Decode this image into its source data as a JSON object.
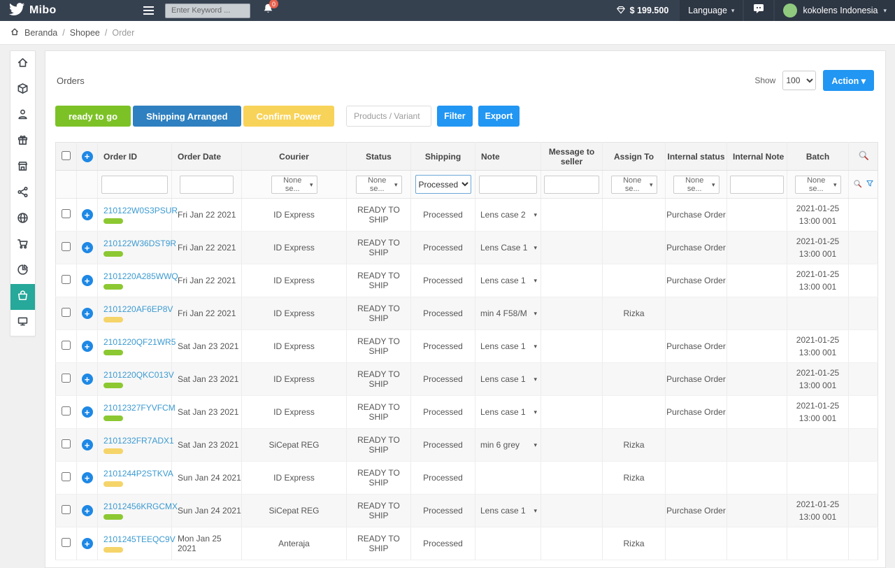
{
  "topbar": {
    "brand": "Mibo",
    "search_placeholder": "Enter Keyword ...",
    "notification_count": "0",
    "balance": "$ 199.500",
    "language_label": "Language",
    "user_name": "kokolens Indonesia"
  },
  "breadcrumb": {
    "home": "Beranda",
    "separator": "/",
    "section": "Shopee",
    "current": "Order"
  },
  "sidebar": {
    "items": [
      {
        "icon": "home-icon",
        "active": false
      },
      {
        "icon": "package-icon",
        "active": false
      },
      {
        "icon": "user-icon",
        "active": false
      },
      {
        "icon": "gift-icon",
        "active": false
      },
      {
        "icon": "store-icon",
        "active": false
      },
      {
        "icon": "share-icon",
        "active": false
      },
      {
        "icon": "globe-icon",
        "active": false
      },
      {
        "icon": "cart-icon",
        "active": false
      },
      {
        "icon": "pie-chart-icon",
        "active": false
      },
      {
        "icon": "basket-icon",
        "active": true
      },
      {
        "icon": "monitor-icon",
        "active": false
      }
    ]
  },
  "toolbar": {
    "title": "Orders",
    "show_label": "Show",
    "per_page": "100",
    "action_label": "Action ▾"
  },
  "actions": {
    "ready_to_go": "ready to go",
    "shipping_arranged": "Shipping Arranged",
    "confirm_power": "Confirm Power",
    "products_placeholder": "Products / Variant",
    "filter_label": "Filter",
    "export_label": "Export"
  },
  "table": {
    "columns": {
      "order_id": "Order ID",
      "order_date": "Order Date",
      "courier": "Courier",
      "status": "Status",
      "shipping": "Shipping",
      "note": "Note",
      "message": "Message to seller",
      "assign": "Assign To",
      "internal_status": "Internal status",
      "internal_note": "Internal Note",
      "batch": "Batch"
    },
    "filters": {
      "none_select": "None se...",
      "shipping_selected": "Processed"
    },
    "rows": [
      {
        "id": "210122W0S3PSUR",
        "badge": "green",
        "date": "Fri Jan 22 2021",
        "courier": "ID Express",
        "status": "READY TO SHIP",
        "shipping": "Processed",
        "note": "Lens case 2",
        "message": "",
        "assign": "",
        "internal_status": "Purchase Order",
        "internal_note": "",
        "batch": "2021-01-25 13:00 001"
      },
      {
        "id": "210122W36DST9R",
        "badge": "green",
        "date": "Fri Jan 22 2021",
        "courier": "ID Express",
        "status": "READY TO SHIP",
        "shipping": "Processed",
        "note": "Lens Case 1",
        "message": "",
        "assign": "",
        "internal_status": "Purchase Order",
        "internal_note": "",
        "batch": "2021-01-25 13:00 001"
      },
      {
        "id": "2101220A285WWQ",
        "badge": "green",
        "date": "Fri Jan 22 2021",
        "courier": "ID Express",
        "status": "READY TO SHIP",
        "shipping": "Processed",
        "note": "Lens case 1",
        "message": "",
        "assign": "",
        "internal_status": "Purchase Order",
        "internal_note": "",
        "batch": "2021-01-25 13:00 001"
      },
      {
        "id": "2101220AF6EP8V",
        "badge": "yellow",
        "date": "Fri Jan 22 2021",
        "courier": "ID Express",
        "status": "READY TO SHIP",
        "shipping": "Processed",
        "note": "min 4 F58/M",
        "message": "",
        "assign": "Rizka",
        "internal_status": "",
        "internal_note": "",
        "batch": ""
      },
      {
        "id": "2101220QF21WR5",
        "badge": "green",
        "date": "Sat Jan 23 2021",
        "courier": "ID Express",
        "status": "READY TO SHIP",
        "shipping": "Processed",
        "note": "Lens case 1",
        "message": "",
        "assign": "",
        "internal_status": "Purchase Order",
        "internal_note": "",
        "batch": "2021-01-25 13:00 001"
      },
      {
        "id": "2101220QKC013V",
        "badge": "green",
        "date": "Sat Jan 23 2021",
        "courier": "ID Express",
        "status": "READY TO SHIP",
        "shipping": "Processed",
        "note": "Lens case 1",
        "message": "",
        "assign": "",
        "internal_status": "Purchase Order",
        "internal_note": "",
        "batch": "2021-01-25 13:00 001"
      },
      {
        "id": "21012327FYVFCM",
        "badge": "green",
        "date": "Sat Jan 23 2021",
        "courier": "ID Express",
        "status": "READY TO SHIP",
        "shipping": "Processed",
        "note": "Lens case 1",
        "message": "",
        "assign": "",
        "internal_status": "Purchase Order",
        "internal_note": "",
        "batch": "2021-01-25 13:00 001"
      },
      {
        "id": "2101232FR7ADX1",
        "badge": "yellow",
        "date": "Sat Jan 23 2021",
        "courier": "SiCepat REG",
        "status": "READY TO SHIP",
        "shipping": "Processed",
        "note": "min 6 grey",
        "message": "",
        "assign": "Rizka",
        "internal_status": "",
        "internal_note": "",
        "batch": ""
      },
      {
        "id": "2101244P2STKVA",
        "badge": "yellow",
        "date": "Sun Jan 24 2021",
        "courier": "ID Express",
        "status": "READY TO SHIP",
        "shipping": "Processed",
        "note": "",
        "message": "",
        "assign": "Rizka",
        "internal_status": "",
        "internal_note": "",
        "batch": ""
      },
      {
        "id": "21012456KRGCMX",
        "badge": "green",
        "date": "Sun Jan 24 2021",
        "courier": "SiCepat REG",
        "status": "READY TO SHIP",
        "shipping": "Processed",
        "note": "Lens case 1",
        "message": "",
        "assign": "",
        "internal_status": "Purchase Order",
        "internal_note": "",
        "batch": "2021-01-25 13:00 001"
      },
      {
        "id": "2101245TEEQC9V",
        "badge": "yellow",
        "date": "Mon Jan 25 2021",
        "courier": "Anteraja",
        "status": "READY TO SHIP",
        "shipping": "Processed",
        "note": "",
        "message": "",
        "assign": "Rizka",
        "internal_status": "",
        "internal_note": "",
        "batch": ""
      }
    ]
  },
  "icons": {
    "bird-logo-icon": "white bird silhouette",
    "hamburger-icon": "three horizontal bars",
    "bell-icon": "white notification bell",
    "gem-icon": "diamond outline before balance",
    "chat-icon": "white speech bubble",
    "home-breadcrumb-icon": "dark house",
    "search-icon": "magnifier with red handle",
    "filter-funnel-icon": "blue outline funnel",
    "plus-circle-icon": "blue circle with white plus",
    "chevron-down-icon": "small down caret"
  },
  "colors": {
    "topbar_bg": "#364150",
    "accent_teal": "#26a89a",
    "green": "#7cc226",
    "yellow": "#f8d359",
    "blue_button": "#2196f3",
    "dark_blue_button": "#2e80c0",
    "link_blue": "#3b9ad1",
    "badge_red": "#e8604c"
  }
}
